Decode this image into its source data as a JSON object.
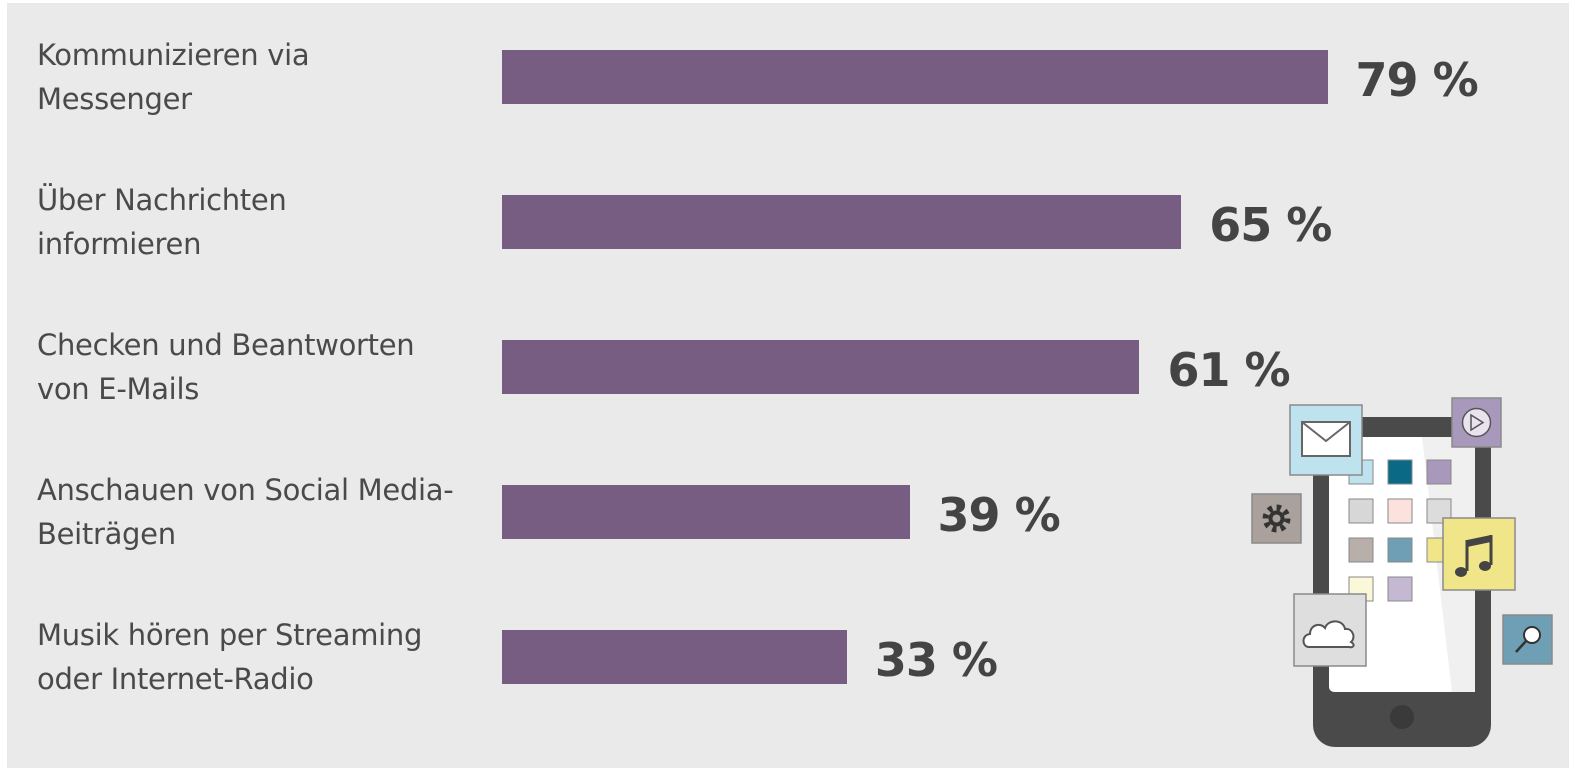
{
  "chart_data": {
    "type": "bar",
    "orientation": "horizontal",
    "categories": [
      "Kommunizieren via\nMessenger",
      "Über Nachrichten\ninformieren",
      "Checken und Beantworten\nvon E-Mails",
      "Anschauen von Social Media-\nBeiträgen",
      "Musik hören per Streaming\noder Internet-Radio"
    ],
    "values": [
      79,
      65,
      61,
      39,
      33
    ],
    "value_labels": [
      "79 %",
      "65 %",
      "61 %",
      "39 %",
      "33 %"
    ],
    "unit": "%",
    "xlim": [
      0,
      100
    ],
    "grid": false,
    "legend": "none",
    "title": "",
    "xlabel": "",
    "ylabel": ""
  },
  "colors": {
    "bar": "#775d81",
    "background": "#eaeaea",
    "label_text": "#4a4a4a",
    "value_text": "#444444"
  },
  "illustration": {
    "name": "smartphone-apps-illustration",
    "icons": [
      "mail-icon",
      "play-icon",
      "gear-icon",
      "music-note-icon",
      "cloud-icon",
      "search-icon"
    ]
  }
}
